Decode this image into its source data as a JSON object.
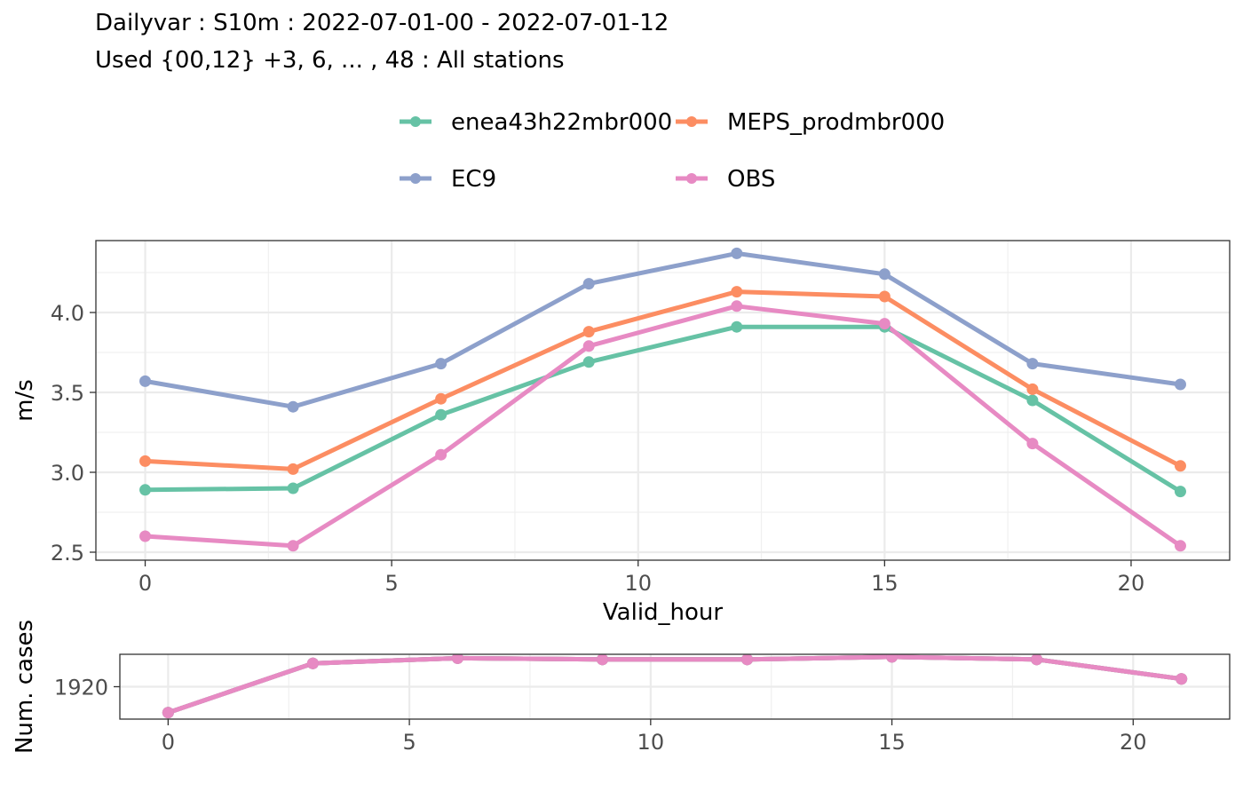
{
  "title": {
    "line1": "Dailyvar : S10m : 2022-07-01-00 - 2022-07-01-12",
    "line2": "Used {00,12} +3, 6, ... , 48 : All stations"
  },
  "legend": [
    {
      "name": "enea43h22mbr000",
      "color": "#66c2a5"
    },
    {
      "name": "MEPS_prodmbr000",
      "color": "#fc8d62"
    },
    {
      "name": "EC9",
      "color": "#8da0cb"
    },
    {
      "name": "OBS",
      "color": "#e78ac3"
    }
  ],
  "chart_data": [
    {
      "type": "line",
      "xlabel": "Valid_hour",
      "ylabel": "m/s",
      "xlim": [
        -1,
        22
      ],
      "ylim": [
        2.45,
        4.45
      ],
      "x_ticks": [
        0,
        5,
        10,
        15,
        20
      ],
      "y_ticks": [
        2.5,
        3.0,
        3.5,
        4.0
      ],
      "y_tick_labels": [
        "2.5",
        "3.0",
        "3.5",
        "4.0"
      ],
      "grid": true,
      "x": [
        0,
        3,
        6,
        9,
        12,
        15,
        18,
        21
      ],
      "series": [
        {
          "name": "enea43h22mbr000",
          "color": "#66c2a5",
          "values": [
            2.89,
            2.9,
            3.36,
            3.69,
            3.91,
            3.91,
            3.45,
            2.88
          ]
        },
        {
          "name": "MEPS_prodmbr000",
          "color": "#fc8d62",
          "values": [
            3.07,
            3.02,
            3.46,
            3.88,
            4.13,
            4.1,
            3.52,
            3.04
          ]
        },
        {
          "name": "EC9",
          "color": "#8da0cb",
          "values": [
            3.57,
            3.41,
            3.68,
            4.18,
            4.37,
            4.24,
            3.68,
            3.55
          ]
        },
        {
          "name": "OBS",
          "color": "#e78ac3",
          "values": [
            2.6,
            2.54,
            3.11,
            3.79,
            4.04,
            3.93,
            3.18,
            2.54
          ]
        }
      ]
    },
    {
      "type": "line",
      "xlabel": "",
      "ylabel": "Num. cases",
      "xlim": [
        -1,
        22
      ],
      "ylim": [
        1917.5,
        1922.5
      ],
      "x_ticks": [
        0,
        5,
        10,
        15,
        20
      ],
      "y_ticks": [
        1920
      ],
      "y_tick_labels": [
        "1920"
      ],
      "grid": true,
      "x": [
        0,
        3,
        6,
        9,
        12,
        15,
        18,
        21
      ],
      "series": [
        {
          "name": "enea43h22mbr000",
          "color": "#66c2a5",
          "values": [
            1918,
            1921.8,
            1922.2,
            1922.1,
            1922.1,
            1922.3,
            1922.1,
            1920.6
          ]
        },
        {
          "name": "MEPS_prodmbr000",
          "color": "#fc8d62",
          "values": [
            1918,
            1921.8,
            1922.2,
            1922.1,
            1922.1,
            1922.3,
            1922.1,
            1920.6
          ]
        },
        {
          "name": "EC9",
          "color": "#8da0cb",
          "values": [
            1918,
            1921.8,
            1922.2,
            1922.1,
            1922.1,
            1922.3,
            1922.1,
            1920.6
          ]
        },
        {
          "name": "OBS",
          "color": "#e78ac3",
          "values": [
            1918,
            1921.8,
            1922.2,
            1922.1,
            1922.1,
            1922.3,
            1922.1,
            1920.6
          ]
        }
      ]
    }
  ]
}
